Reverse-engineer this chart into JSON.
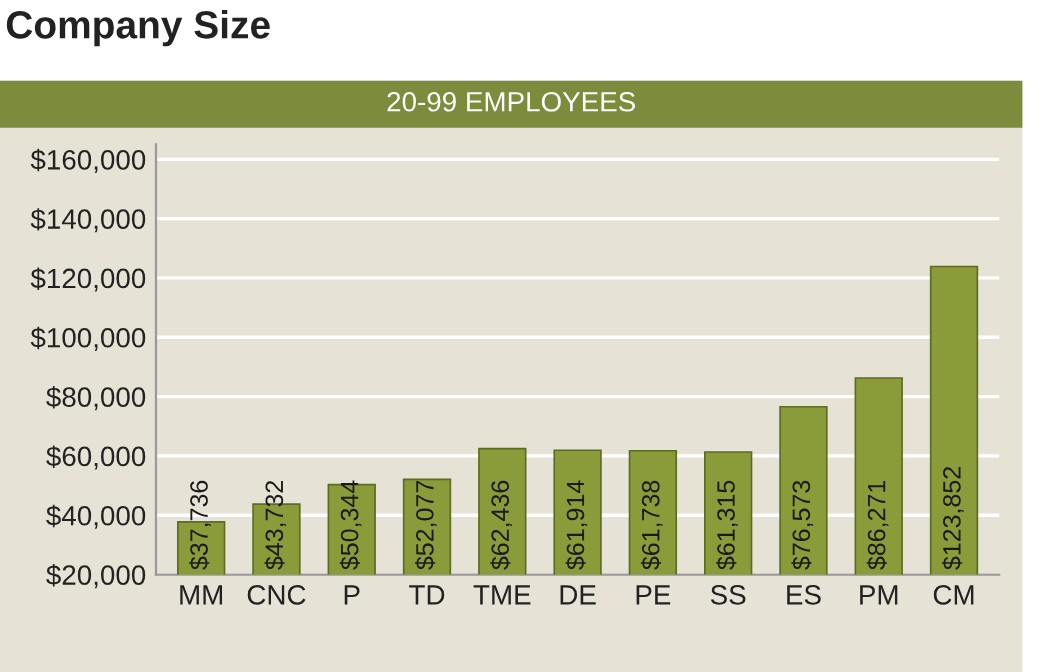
{
  "chart_data": {
    "type": "bar",
    "title": "Company Size",
    "subtitle": "20-99 EMPLOYEES",
    "categories": [
      "MM",
      "CNC",
      "P",
      "TD",
      "TME",
      "DE",
      "PE",
      "SS",
      "ES",
      "PM",
      "CM"
    ],
    "values": [
      37736,
      43732,
      50344,
      52077,
      62436,
      61914,
      61738,
      61315,
      76573,
      86271,
      123852
    ],
    "value_labels": [
      "$37,736",
      "$43,732",
      "$50,344",
      "$52,077",
      "$62,436",
      "$61,914",
      "$61,738",
      "$61,315",
      "$76,573",
      "$86,271",
      "$123,852"
    ],
    "color": "#8a9b3a",
    "ylim": [
      20000,
      165000
    ],
    "yticks": [
      {
        "value": 20000,
        "label": "$20,000"
      },
      {
        "value": 40000,
        "label": "$40,000"
      },
      {
        "value": 60000,
        "label": "$60,000"
      },
      {
        "value": 80000,
        "label": "$80,000"
      },
      {
        "value": 100000,
        "label": "$100,000"
      },
      {
        "value": 120000,
        "label": "$120,000"
      },
      {
        "value": 140000,
        "label": "$140,000"
      },
      {
        "value": 160000,
        "label": "$160,000"
      }
    ],
    "grid": "y"
  }
}
